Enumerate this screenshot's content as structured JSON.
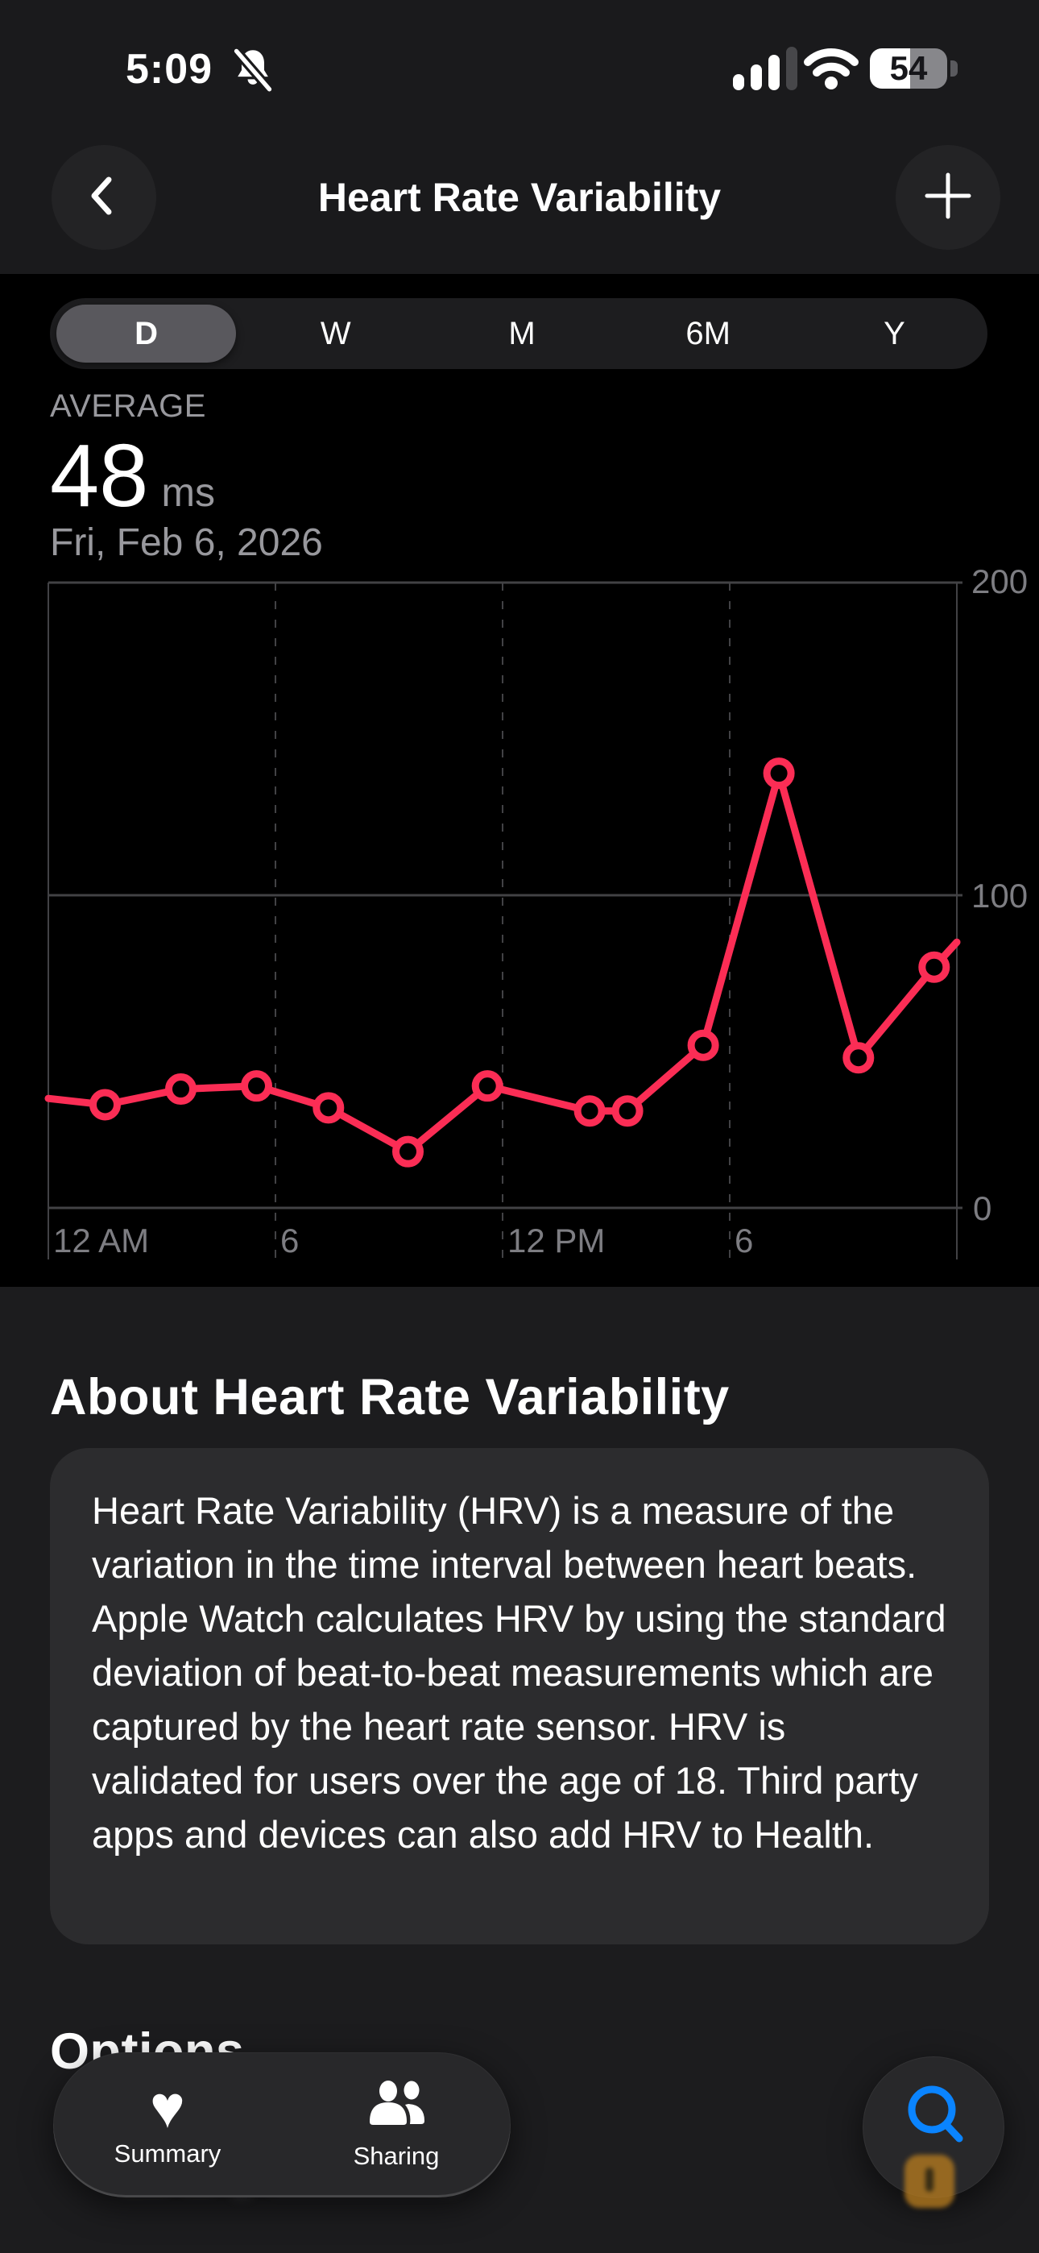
{
  "status_bar": {
    "time": "5:09",
    "silenced_icon": "bell-slash-icon",
    "signal": {
      "bars_filled": 3,
      "bars_total": 4
    },
    "wifi_icon": "wifi-icon",
    "battery": {
      "percent": "54"
    }
  },
  "nav": {
    "title": "Heart Rate Variability",
    "back_icon": "chevron-left-icon",
    "add_icon": "plus-icon"
  },
  "segmented_control": {
    "options": [
      {
        "label": "D",
        "selected": true
      },
      {
        "label": "W",
        "selected": false
      },
      {
        "label": "M",
        "selected": false
      },
      {
        "label": "6M",
        "selected": false
      },
      {
        "label": "Y",
        "selected": false
      }
    ]
  },
  "summary_header": {
    "label": "AVERAGE",
    "value": "48",
    "unit": "ms",
    "date": "Fri, Feb 6, 2026"
  },
  "chart_data": {
    "type": "line",
    "title": "Heart Rate Variability, day view",
    "unit": "ms",
    "xlabel": "",
    "ylabel": "",
    "ylim": [
      0,
      200
    ],
    "x_range_hours": [
      0,
      24
    ],
    "grid": true,
    "legend": false,
    "line_color": "#fb2d55",
    "grid_color": "#424245",
    "y_ticks": [
      {
        "value": 200,
        "label": "200"
      },
      {
        "value": 100,
        "label": "100"
      },
      {
        "value": 0,
        "label": "0"
      }
    ],
    "x_ticks": [
      {
        "hour": 0,
        "label": "12 AM"
      },
      {
        "hour": 6,
        "label": "6"
      },
      {
        "hour": 12,
        "label": "12 PM"
      },
      {
        "hour": 18,
        "label": "6"
      }
    ],
    "points": [
      {
        "time": "12:00 AM",
        "hour": 0,
        "value": 35,
        "marker": false
      },
      {
        "time": "1:30 AM",
        "hour": 1.5,
        "value": 33,
        "marker": true
      },
      {
        "time": "3:30 AM",
        "hour": 3.5,
        "value": 38,
        "marker": true
      },
      {
        "time": "5:30 AM",
        "hour": 5.5,
        "value": 39,
        "marker": true
      },
      {
        "time": "7:25 AM",
        "hour": 7.4,
        "value": 32,
        "marker": true
      },
      {
        "time": "9:30 AM",
        "hour": 9.5,
        "value": 18,
        "marker": true
      },
      {
        "time": "11:35 AM",
        "hour": 11.6,
        "value": 39,
        "marker": true
      },
      {
        "time": "2:20 PM",
        "hour": 14.3,
        "value": 31,
        "marker": true
      },
      {
        "time": "3:20 PM",
        "hour": 15.3,
        "value": 31,
        "marker": true
      },
      {
        "time": "5:20 PM",
        "hour": 17.3,
        "value": 52,
        "marker": true
      },
      {
        "time": "7:20 PM",
        "hour": 19.3,
        "value": 139,
        "marker": true
      },
      {
        "time": "9:25 PM",
        "hour": 21.4,
        "value": 48,
        "marker": true
      },
      {
        "time": "11:25 PM",
        "hour": 23.4,
        "value": 77,
        "marker": true
      },
      {
        "time": "12:00 AM",
        "hour": 24,
        "value": 85,
        "marker": false
      }
    ]
  },
  "about_section": {
    "heading": "About Heart Rate Variability",
    "body": "Heart Rate Variability (HRV) is a measure of the variation in the time interval between heart beats. Apple Watch calculates HRV by using the standard deviation of beat-to-beat measurements which are captured by the heart rate sensor. HRV is validated for users over the age of 18. Third party apps and devices can also add HRV to Health."
  },
  "options_section": {
    "heading": "Options"
  },
  "tab_bar": {
    "tabs": [
      {
        "label": "Summary",
        "icon": "heart-icon",
        "active": true
      },
      {
        "label": "Sharing",
        "icon": "people-icon",
        "active": false
      }
    ]
  },
  "search_button": {
    "icon": "search-icon"
  },
  "colors": {
    "accent_pink": "#fb2d55",
    "accent_blue": "#0a84ff",
    "header_bg": "#1a1a1c",
    "section_bg": "#1c1c1e",
    "card_bg": "#2c2c2e",
    "muted_text": "#98989d",
    "axis_text": "#7d7d82"
  }
}
